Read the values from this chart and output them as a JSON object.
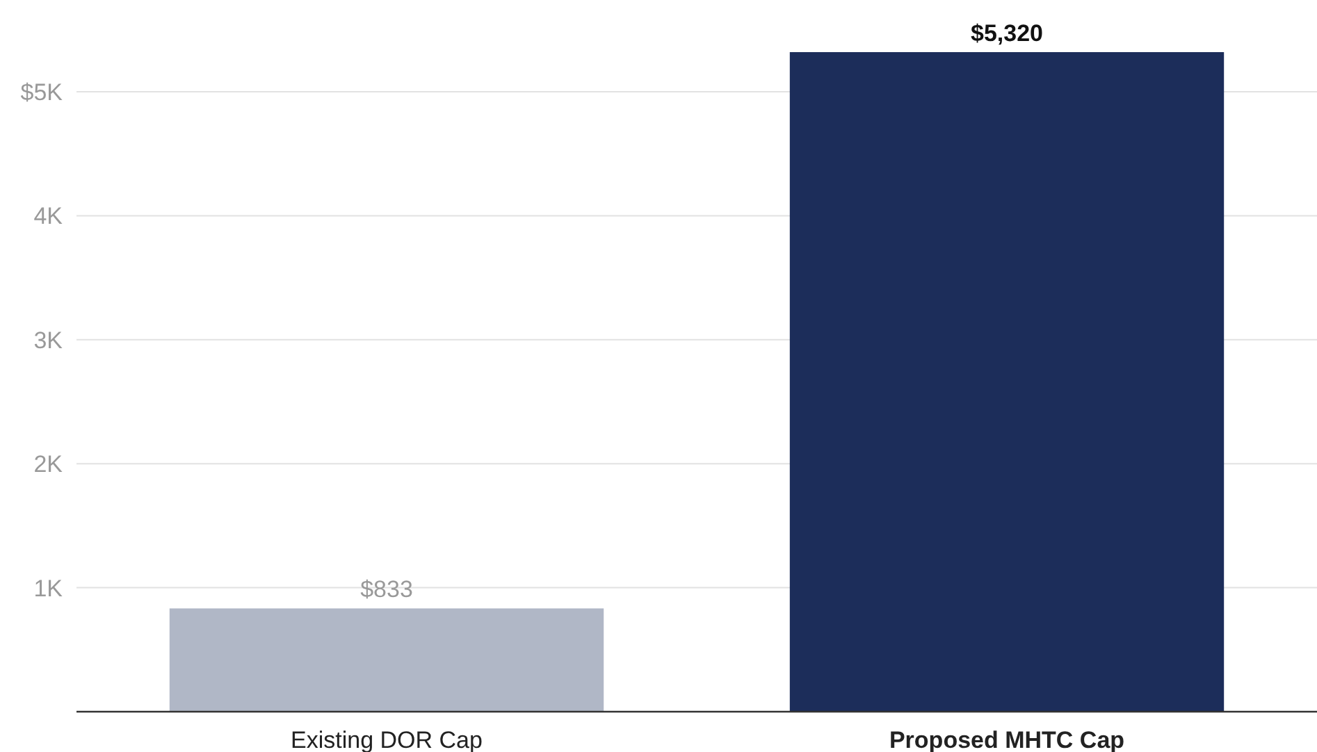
{
  "chart_data": {
    "type": "bar",
    "categories": [
      "Existing DOR Cap",
      "Proposed MHTC Cap"
    ],
    "values": [
      833,
      5320
    ],
    "colors": [
      "#b0b7c6",
      "#1c2d5a"
    ],
    "value_labels": [
      "$833",
      "$5,320"
    ],
    "ylim": [
      0,
      5320
    ],
    "yticks": [
      {
        "value": 1000,
        "label": "1K"
      },
      {
        "value": 2000,
        "label": "2K"
      },
      {
        "value": 3000,
        "label": "3K"
      },
      {
        "value": 4000,
        "label": "4K"
      },
      {
        "value": 5000,
        "label": "$5K"
      }
    ],
    "grid": "y"
  }
}
